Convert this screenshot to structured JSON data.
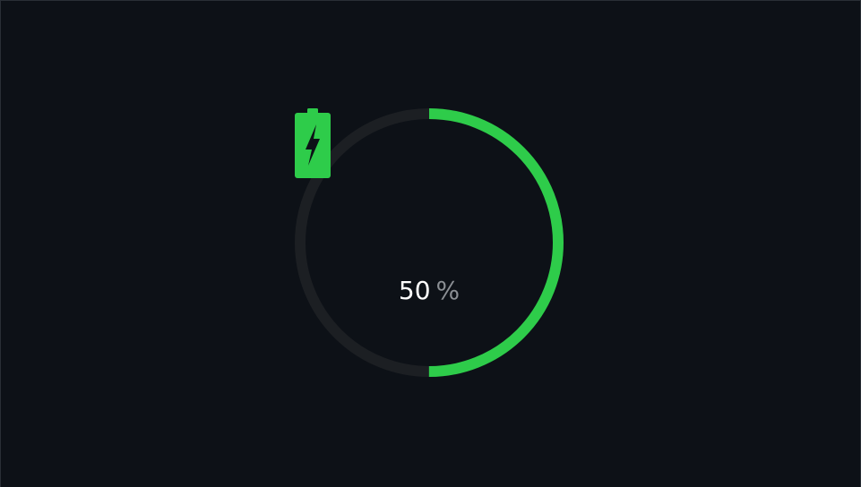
{
  "battery": {
    "level_percent": 50,
    "value_text": "50",
    "unit_text": "%",
    "charging": true,
    "icon": "charging-battery-icon"
  },
  "colors": {
    "background": "#0d1117",
    "track": "#1c1f23",
    "progress": "#2ecc4a",
    "value_text": "#ffffff",
    "unit_text": "#8b8f94"
  }
}
